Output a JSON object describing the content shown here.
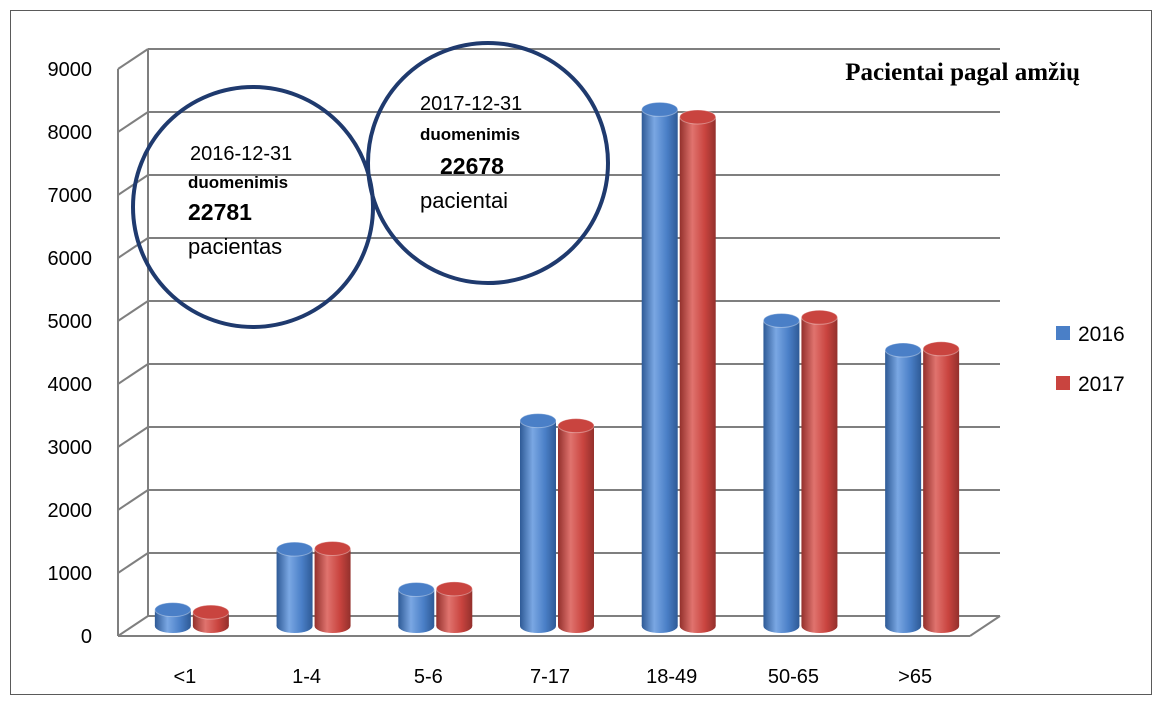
{
  "chart_data": {
    "type": "bar",
    "title": "Pacientai pagal amžių",
    "categories": [
      "<1",
      "1-4",
      "5-6",
      "7-17",
      "18-49",
      "50-65",
      ">65"
    ],
    "series": [
      {
        "name": "2016",
        "values": [
          260,
          1220,
          580,
          3260,
          8200,
          4850,
          4380
        ],
        "color": "#4a7fc7"
      },
      {
        "name": "2017",
        "values": [
          220,
          1230,
          590,
          3180,
          8080,
          4900,
          4400
        ],
        "color": "#c9443f"
      }
    ],
    "ylim": [
      0,
      9000
    ],
    "yticks": [
      "0",
      "1000",
      "2000",
      "3000",
      "4000",
      "5000",
      "6000",
      "7000",
      "8000",
      "9000"
    ],
    "grid": true,
    "legend_position": "right",
    "annotations": [
      {
        "date": "2016-12-31",
        "label": "duomenimis",
        "count": "22781",
        "word": "pacientas"
      },
      {
        "date": "2017-12-31",
        "label": "duomenimis",
        "count": "22678",
        "word": "pacientai"
      }
    ]
  }
}
